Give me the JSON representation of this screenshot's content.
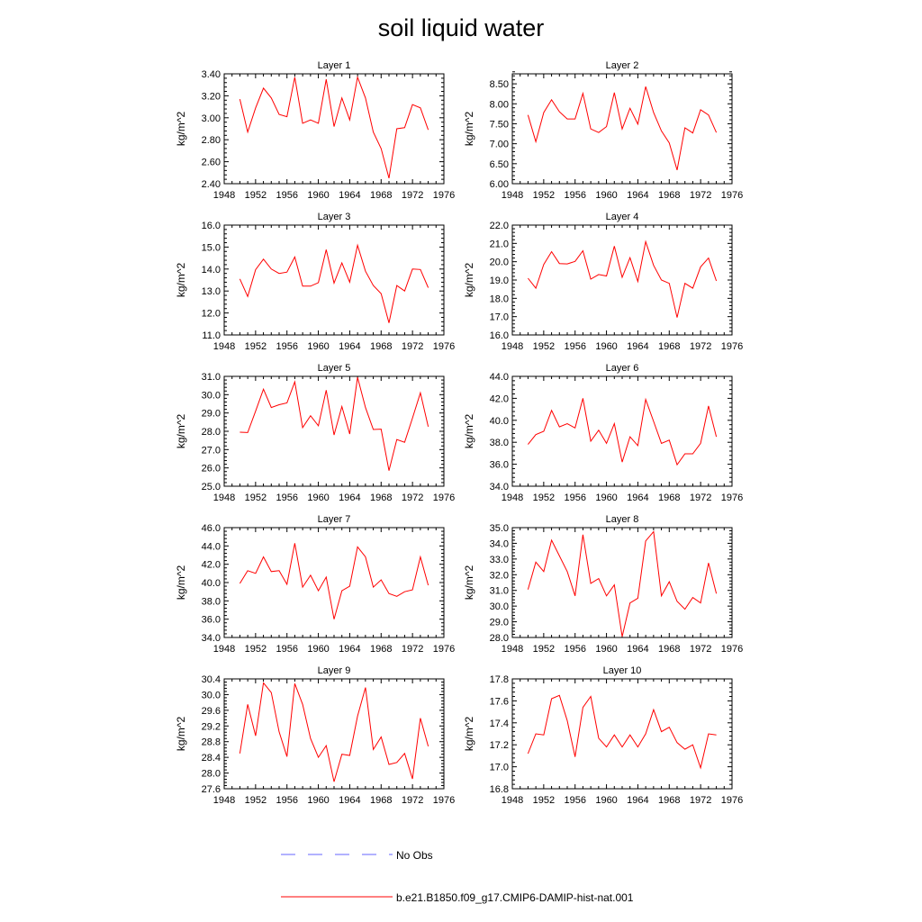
{
  "title": "soil liquid water",
  "colors": {
    "series": "#ff0000",
    "no_obs": "#6666ff",
    "axis": "#000000"
  },
  "legend": {
    "entries": [
      {
        "label": "No Obs",
        "style": "dashed",
        "color": "#6666ff"
      },
      {
        "label": "b.e21.B1850.f09_g17.CMIP6-DAMIP-hist-nat.001",
        "style": "solid",
        "color": "#ff0000"
      }
    ]
  },
  "chart_data": [
    {
      "type": "line",
      "title": "Layer 1",
      "ylabel": "kg/m^2",
      "xlim": [
        1948,
        1976
      ],
      "xticks": [
        1948,
        1952,
        1956,
        1960,
        1964,
        1968,
        1972,
        1976
      ],
      "ylim": [
        2.4,
        3.4
      ],
      "yticks": [
        2.4,
        2.6,
        2.8,
        3.0,
        3.2,
        3.4
      ],
      "ytick_labels": [
        "2.40",
        "2.60",
        "2.80",
        "3.00",
        "3.20",
        "3.40"
      ],
      "x": [
        1950,
        1951,
        1952,
        1953,
        1954,
        1955,
        1956,
        1957,
        1958,
        1959,
        1960,
        1961,
        1962,
        1963,
        1964,
        1965,
        1966,
        1967,
        1968,
        1969,
        1970,
        1971,
        1972,
        1973,
        1974
      ],
      "series": [
        {
          "name": "b.e21.B1850.f09_g17.CMIP6-DAMIP-hist-nat.001",
          "values": [
            3.17,
            2.87,
            3.09,
            3.27,
            3.18,
            3.03,
            3.01,
            3.37,
            2.95,
            2.98,
            2.95,
            3.35,
            2.92,
            3.18,
            2.98,
            3.37,
            3.18,
            2.87,
            2.72,
            2.45,
            2.9,
            2.91,
            3.12,
            3.09,
            2.89
          ]
        }
      ]
    },
    {
      "type": "line",
      "title": "Layer 2",
      "ylabel": "kg/m^2",
      "xlim": [
        1948,
        1976
      ],
      "xticks": [
        1948,
        1952,
        1956,
        1960,
        1964,
        1968,
        1972,
        1976
      ],
      "ylim": [
        6.0,
        8.75
      ],
      "yticks": [
        6.0,
        6.5,
        7.0,
        7.5,
        8.0,
        8.5
      ],
      "ytick_labels": [
        "6.00",
        "6.50",
        "7.00",
        "7.50",
        "8.00",
        "8.50"
      ],
      "x": [
        1950,
        1951,
        1952,
        1953,
        1954,
        1955,
        1956,
        1957,
        1958,
        1959,
        1960,
        1961,
        1962,
        1963,
        1964,
        1965,
        1966,
        1967,
        1968,
        1969,
        1970,
        1971,
        1972,
        1973,
        1974
      ],
      "series": [
        {
          "name": "b.e21.B1850.f09_g17.CMIP6-DAMIP-hist-nat.001",
          "values": [
            7.72,
            7.05,
            7.78,
            8.1,
            7.8,
            7.62,
            7.62,
            8.26,
            7.37,
            7.28,
            7.43,
            8.28,
            7.37,
            7.89,
            7.49,
            8.43,
            7.78,
            7.32,
            7.02,
            6.34,
            7.4,
            7.27,
            7.85,
            7.72,
            7.28
          ]
        }
      ]
    },
    {
      "type": "line",
      "title": "Layer 3",
      "ylabel": "kg/m^2",
      "xlim": [
        1948,
        1976
      ],
      "xticks": [
        1948,
        1952,
        1956,
        1960,
        1964,
        1968,
        1972,
        1976
      ],
      "ylim": [
        11.0,
        16.0
      ],
      "yticks": [
        11.0,
        12.0,
        13.0,
        14.0,
        15.0,
        16.0
      ],
      "ytick_labels": [
        "11.0",
        "12.0",
        "13.0",
        "14.0",
        "15.0",
        "16.0"
      ],
      "x": [
        1950,
        1951,
        1952,
        1953,
        1954,
        1955,
        1956,
        1957,
        1958,
        1959,
        1960,
        1961,
        1962,
        1963,
        1964,
        1965,
        1966,
        1967,
        1968,
        1969,
        1970,
        1971,
        1972,
        1973,
        1974
      ],
      "series": [
        {
          "name": "b.e21.B1850.f09_g17.CMIP6-DAMIP-hist-nat.001",
          "values": [
            13.55,
            12.75,
            13.97,
            14.45,
            14.0,
            13.8,
            13.86,
            14.55,
            13.22,
            13.22,
            13.38,
            14.88,
            13.36,
            14.28,
            13.4,
            15.08,
            13.9,
            13.25,
            12.88,
            11.55,
            13.25,
            13.0,
            14.0,
            13.98,
            13.15
          ]
        }
      ]
    },
    {
      "type": "line",
      "title": "Layer 4",
      "ylabel": "kg/m^2",
      "xlim": [
        1948,
        1976
      ],
      "xticks": [
        1948,
        1952,
        1956,
        1960,
        1964,
        1968,
        1972,
        1976
      ],
      "ylim": [
        16.0,
        22.0
      ],
      "yticks": [
        16.0,
        17.0,
        18.0,
        19.0,
        20.0,
        21.0,
        22.0
      ],
      "ytick_labels": [
        "16.0",
        "17.0",
        "18.0",
        "19.0",
        "20.0",
        "21.0",
        "22.0"
      ],
      "x": [
        1950,
        1951,
        1952,
        1953,
        1954,
        1955,
        1956,
        1957,
        1958,
        1959,
        1960,
        1961,
        1962,
        1963,
        1964,
        1965,
        1966,
        1967,
        1968,
        1969,
        1970,
        1971,
        1972,
        1973,
        1974
      ],
      "series": [
        {
          "name": "b.e21.B1850.f09_g17.CMIP6-DAMIP-hist-nat.001",
          "values": [
            19.1,
            18.55,
            19.85,
            20.55,
            19.9,
            19.88,
            20.02,
            20.6,
            19.05,
            19.3,
            19.22,
            20.85,
            19.15,
            20.22,
            18.92,
            21.1,
            19.8,
            19.0,
            18.82,
            16.95,
            18.82,
            18.55,
            19.72,
            20.2,
            18.95
          ]
        }
      ]
    },
    {
      "type": "line",
      "title": "Layer 5",
      "ylabel": "kg/m^2",
      "xlim": [
        1948,
        1976
      ],
      "xticks": [
        1948,
        1952,
        1956,
        1960,
        1964,
        1968,
        1972,
        1976
      ],
      "ylim": [
        25.0,
        31.0
      ],
      "yticks": [
        25.0,
        26.0,
        27.0,
        28.0,
        29.0,
        30.0,
        31.0
      ],
      "ytick_labels": [
        "25.0",
        "26.0",
        "27.0",
        "28.0",
        "29.0",
        "30.0",
        "31.0"
      ],
      "x": [
        1950,
        1951,
        1952,
        1953,
        1954,
        1955,
        1956,
        1957,
        1958,
        1959,
        1960,
        1961,
        1962,
        1963,
        1964,
        1965,
        1966,
        1967,
        1968,
        1969,
        1970,
        1971,
        1972,
        1973,
        1974
      ],
      "series": [
        {
          "name": "b.e21.B1850.f09_g17.CMIP6-DAMIP-hist-nat.001",
          "values": [
            27.95,
            27.93,
            29.1,
            30.3,
            29.3,
            29.45,
            29.55,
            30.7,
            28.2,
            28.85,
            28.3,
            30.25,
            27.8,
            29.35,
            27.85,
            30.95,
            29.3,
            28.1,
            28.12,
            25.85,
            27.55,
            27.4,
            28.72,
            30.1,
            28.25
          ]
        }
      ]
    },
    {
      "type": "line",
      "title": "Layer 6",
      "ylabel": "kg/m^2",
      "xlim": [
        1948,
        1976
      ],
      "xticks": [
        1948,
        1952,
        1956,
        1960,
        1964,
        1968,
        1972,
        1976
      ],
      "ylim": [
        34.0,
        44.0
      ],
      "yticks": [
        34.0,
        36.0,
        38.0,
        40.0,
        42.0,
        44.0
      ],
      "ytick_labels": [
        "34.0",
        "36.0",
        "38.0",
        "40.0",
        "42.0",
        "44.0"
      ],
      "x": [
        1950,
        1951,
        1952,
        1953,
        1954,
        1955,
        1956,
        1957,
        1958,
        1959,
        1960,
        1961,
        1962,
        1963,
        1964,
        1965,
        1966,
        1967,
        1968,
        1969,
        1970,
        1971,
        1972,
        1973,
        1974
      ],
      "series": [
        {
          "name": "b.e21.B1850.f09_g17.CMIP6-DAMIP-hist-nat.001",
          "values": [
            37.8,
            38.7,
            39.0,
            40.9,
            39.4,
            39.7,
            39.3,
            42.0,
            38.1,
            39.1,
            37.9,
            39.7,
            36.2,
            38.5,
            37.7,
            41.9,
            39.9,
            37.9,
            38.2,
            35.95,
            36.95,
            36.95,
            37.9,
            41.3,
            38.5
          ]
        }
      ]
    },
    {
      "type": "line",
      "title": "Layer 7",
      "ylabel": "kg/m^2",
      "xlim": [
        1948,
        1976
      ],
      "xticks": [
        1948,
        1952,
        1956,
        1960,
        1964,
        1968,
        1972,
        1976
      ],
      "ylim": [
        34.0,
        46.0
      ],
      "yticks": [
        34.0,
        36.0,
        38.0,
        40.0,
        42.0,
        44.0,
        46.0
      ],
      "ytick_labels": [
        "34.0",
        "36.0",
        "38.0",
        "40.0",
        "42.0",
        "44.0",
        "46.0"
      ],
      "x": [
        1950,
        1951,
        1952,
        1953,
        1954,
        1955,
        1956,
        1957,
        1958,
        1959,
        1960,
        1961,
        1962,
        1963,
        1964,
        1965,
        1966,
        1967,
        1968,
        1969,
        1970,
        1971,
        1972,
        1973,
        1974
      ],
      "series": [
        {
          "name": "b.e21.B1850.f09_g17.CMIP6-DAMIP-hist-nat.001",
          "values": [
            39.9,
            41.3,
            41.0,
            42.8,
            41.2,
            41.3,
            39.8,
            44.3,
            39.5,
            40.8,
            39.1,
            40.6,
            36.0,
            39.1,
            39.6,
            43.9,
            42.8,
            39.5,
            40.3,
            38.8,
            38.5,
            39.0,
            39.2,
            42.8,
            39.7
          ]
        }
      ]
    },
    {
      "type": "line",
      "title": "Layer 8",
      "ylabel": "kg/m^2",
      "xlim": [
        1948,
        1976
      ],
      "xticks": [
        1948,
        1952,
        1956,
        1960,
        1964,
        1968,
        1972,
        1976
      ],
      "ylim": [
        28.0,
        35.0
      ],
      "yticks": [
        28.0,
        29.0,
        30.0,
        31.0,
        32.0,
        33.0,
        34.0,
        35.0
      ],
      "ytick_labels": [
        "28.0",
        "29.0",
        "30.0",
        "31.0",
        "32.0",
        "33.0",
        "34.0",
        "35.0"
      ],
      "x": [
        1950,
        1951,
        1952,
        1953,
        1954,
        1955,
        1956,
        1957,
        1958,
        1959,
        1960,
        1961,
        1962,
        1963,
        1964,
        1965,
        1966,
        1967,
        1968,
        1969,
        1970,
        1971,
        1972,
        1973,
        1974
      ],
      "series": [
        {
          "name": "b.e21.B1850.f09_g17.CMIP6-DAMIP-hist-nat.001",
          "values": [
            31.05,
            32.8,
            32.2,
            34.2,
            33.2,
            32.2,
            30.65,
            34.55,
            31.45,
            31.75,
            30.65,
            31.35,
            28.05,
            30.2,
            30.5,
            34.15,
            34.75,
            30.65,
            31.55,
            30.3,
            29.8,
            30.55,
            30.2,
            32.75,
            30.8
          ]
        }
      ]
    },
    {
      "type": "line",
      "title": "Layer 9",
      "ylabel": "kg/m^2",
      "xlim": [
        1948,
        1976
      ],
      "xticks": [
        1948,
        1952,
        1956,
        1960,
        1964,
        1968,
        1972,
        1976
      ],
      "ylim": [
        27.6,
        30.4
      ],
      "yticks": [
        27.6,
        28.0,
        28.4,
        28.8,
        29.2,
        29.6,
        30.0,
        30.4
      ],
      "ytick_labels": [
        "27.6",
        "28.0",
        "28.4",
        "28.8",
        "29.2",
        "29.6",
        "30.0",
        "30.4"
      ],
      "x": [
        1950,
        1951,
        1952,
        1953,
        1954,
        1955,
        1956,
        1957,
        1958,
        1959,
        1960,
        1961,
        1962,
        1963,
        1964,
        1965,
        1966,
        1967,
        1968,
        1969,
        1970,
        1971,
        1972,
        1973,
        1974
      ],
      "series": [
        {
          "name": "b.e21.B1850.f09_g17.CMIP6-DAMIP-hist-nat.001",
          "values": [
            28.5,
            29.75,
            28.95,
            30.3,
            30.05,
            29.05,
            28.42,
            30.28,
            29.75,
            28.88,
            28.4,
            28.7,
            27.78,
            28.48,
            28.45,
            29.45,
            30.18,
            28.6,
            28.92,
            28.22,
            28.27,
            28.5,
            27.85,
            29.4,
            28.68
          ]
        }
      ]
    },
    {
      "type": "line",
      "title": "Layer 10",
      "ylabel": "kg/m^2",
      "xlim": [
        1948,
        1976
      ],
      "xticks": [
        1948,
        1952,
        1956,
        1960,
        1964,
        1968,
        1972,
        1976
      ],
      "ylim": [
        16.8,
        17.8
      ],
      "yticks": [
        16.8,
        17.0,
        17.2,
        17.4,
        17.6,
        17.8
      ],
      "ytick_labels": [
        "16.8",
        "17.0",
        "17.2",
        "17.4",
        "17.6",
        "17.8"
      ],
      "x": [
        1950,
        1951,
        1952,
        1953,
        1954,
        1955,
        1956,
        1957,
        1958,
        1959,
        1960,
        1961,
        1962,
        1963,
        1964,
        1965,
        1966,
        1967,
        1968,
        1969,
        1970,
        1971,
        1972,
        1973,
        1974
      ],
      "series": [
        {
          "name": "b.e21.B1850.f09_g17.CMIP6-DAMIP-hist-nat.001",
          "values": [
            17.12,
            17.3,
            17.29,
            17.62,
            17.65,
            17.42,
            17.09,
            17.54,
            17.64,
            17.26,
            17.18,
            17.29,
            17.18,
            17.29,
            17.18,
            17.3,
            17.52,
            17.32,
            17.36,
            17.22,
            17.16,
            17.2,
            16.99,
            17.3,
            17.29
          ]
        }
      ]
    }
  ]
}
